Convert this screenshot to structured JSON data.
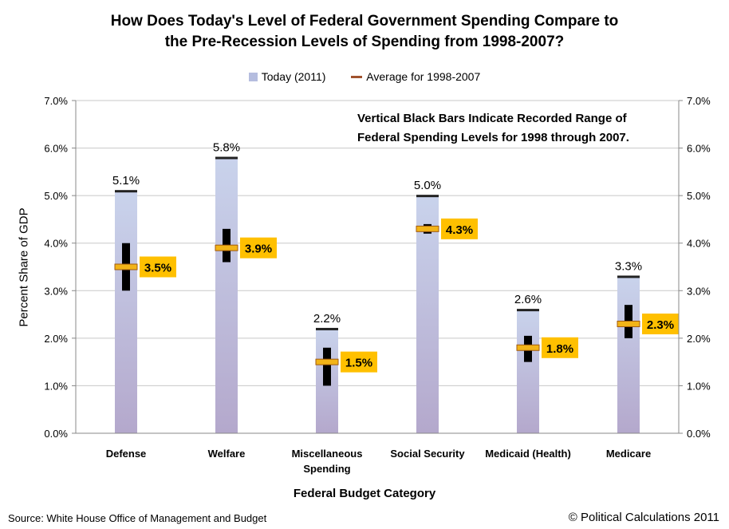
{
  "title_line1": "How Does Today's Level of Federal Government Spending Compare to",
  "title_line2": "the Pre-Recession Levels of Spending from 1998-2007?",
  "legend": {
    "today": "Today (2011)",
    "average": "Average for 1998-2007"
  },
  "note_line1": "Vertical Black Bars Indicate Recorded Range of",
  "note_line2": "Federal Spending Levels for 1998 through 2007.",
  "source": "Source: White House Office of Management and Budget",
  "copyright": "© Political Calculations 2011",
  "chart_data": {
    "type": "bar",
    "ylabel": "Percent Share of GDP",
    "xlabel": "Federal Budget Category",
    "ylim": [
      0,
      7
    ],
    "yticks": [
      "0.0%",
      "1.0%",
      "2.0%",
      "3.0%",
      "4.0%",
      "5.0%",
      "6.0%",
      "7.0%"
    ],
    "grid": true,
    "legend_position": "top",
    "categories": [
      [
        "Defense"
      ],
      [
        "Welfare"
      ],
      [
        "Miscellaneous",
        "Spending"
      ],
      [
        "Social Security"
      ],
      [
        "Medicaid (Health)"
      ],
      [
        "Medicare"
      ]
    ],
    "series": [
      {
        "name": "Today (2011)",
        "values": [
          5.1,
          5.8,
          2.2,
          5.0,
          2.6,
          3.3
        ],
        "labels": [
          "5.1%",
          "5.8%",
          "2.2%",
          "5.0%",
          "2.6%",
          "3.3%"
        ]
      },
      {
        "name": "Average for 1998-2007",
        "values": [
          3.5,
          3.9,
          1.5,
          4.3,
          1.8,
          2.3
        ],
        "labels": [
          "3.5%",
          "3.9%",
          "1.5%",
          "4.3%",
          "1.8%",
          "2.3%"
        ]
      }
    ],
    "range_1998_2007": [
      [
        3.0,
        4.0
      ],
      [
        3.6,
        4.3
      ],
      [
        1.0,
        1.8
      ],
      [
        4.2,
        4.4
      ],
      [
        1.5,
        2.05
      ],
      [
        2.0,
        2.7
      ]
    ],
    "colors": {
      "bar_top": "#c9d3ec",
      "bar_bottom": "#b4a8cc",
      "average_marker": "#f2b418",
      "label_box": "#ffc000",
      "range_bar": "#000000"
    }
  }
}
